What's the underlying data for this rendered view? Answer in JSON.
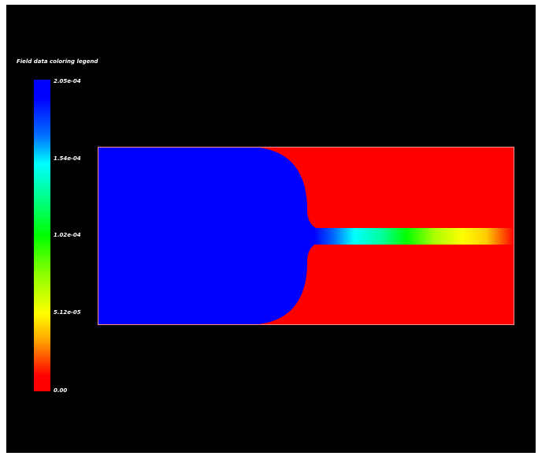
{
  "legend": {
    "title": "Field data coloring legend",
    "ticks": [
      "2.05e-04",
      "1.54e-04",
      "1.02e-04",
      "5.12e-05",
      "0.00"
    ],
    "colors": {
      "max": "#0000ff",
      "high": "#00ffff",
      "mid": "#00ff00",
      "low": "#ffff00",
      "min": "#ff0000"
    }
  },
  "plot": {
    "background": "#000000",
    "outline": "#ff9090"
  }
}
